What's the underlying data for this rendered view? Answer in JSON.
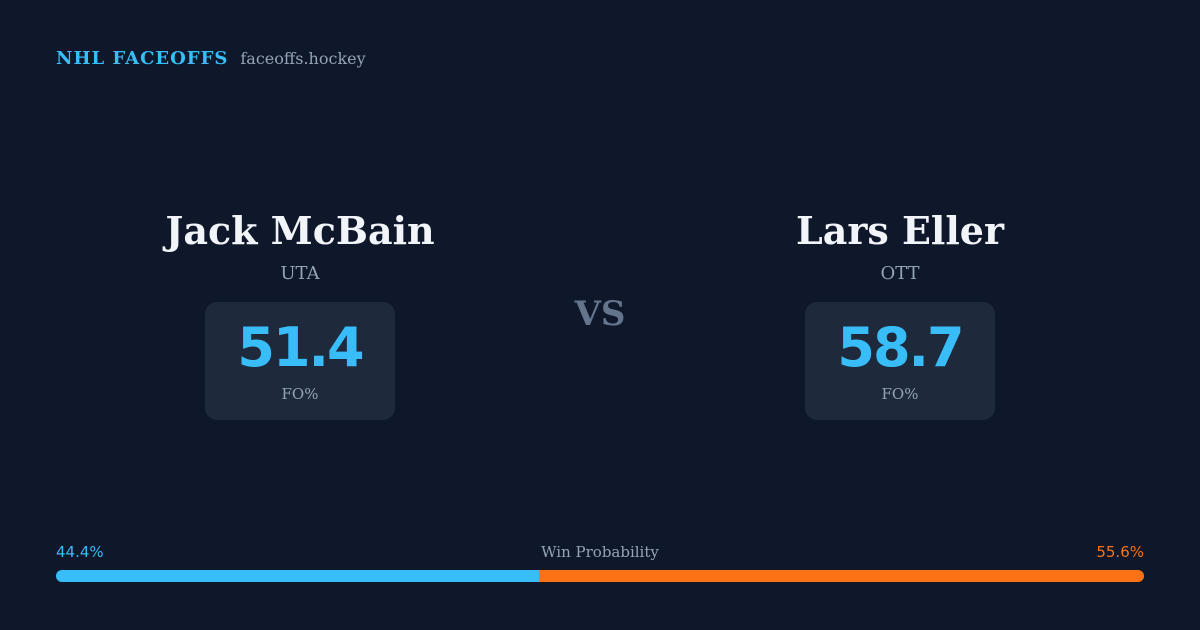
{
  "brand": {
    "title": "NHL FACEOFFS",
    "domain": "faceoffs.hockey"
  },
  "left_player": {
    "name": "Jack McBain",
    "team": "UTA",
    "fo_value": "51.4",
    "fo_label": "FO%"
  },
  "vs_label": "VS",
  "right_player": {
    "name": "Lars Eller",
    "team": "OTT",
    "fo_value": "58.7",
    "fo_label": "FO%"
  },
  "win_probability": {
    "label": "Win Probability",
    "left_text": "44.4%",
    "right_text": "55.6%",
    "left_value": 44.4,
    "right_value": 55.6
  },
  "colors": {
    "background": "#0f172a",
    "accent_left": "#38bdf8",
    "accent_right": "#f97316",
    "card": "#1e293b"
  }
}
